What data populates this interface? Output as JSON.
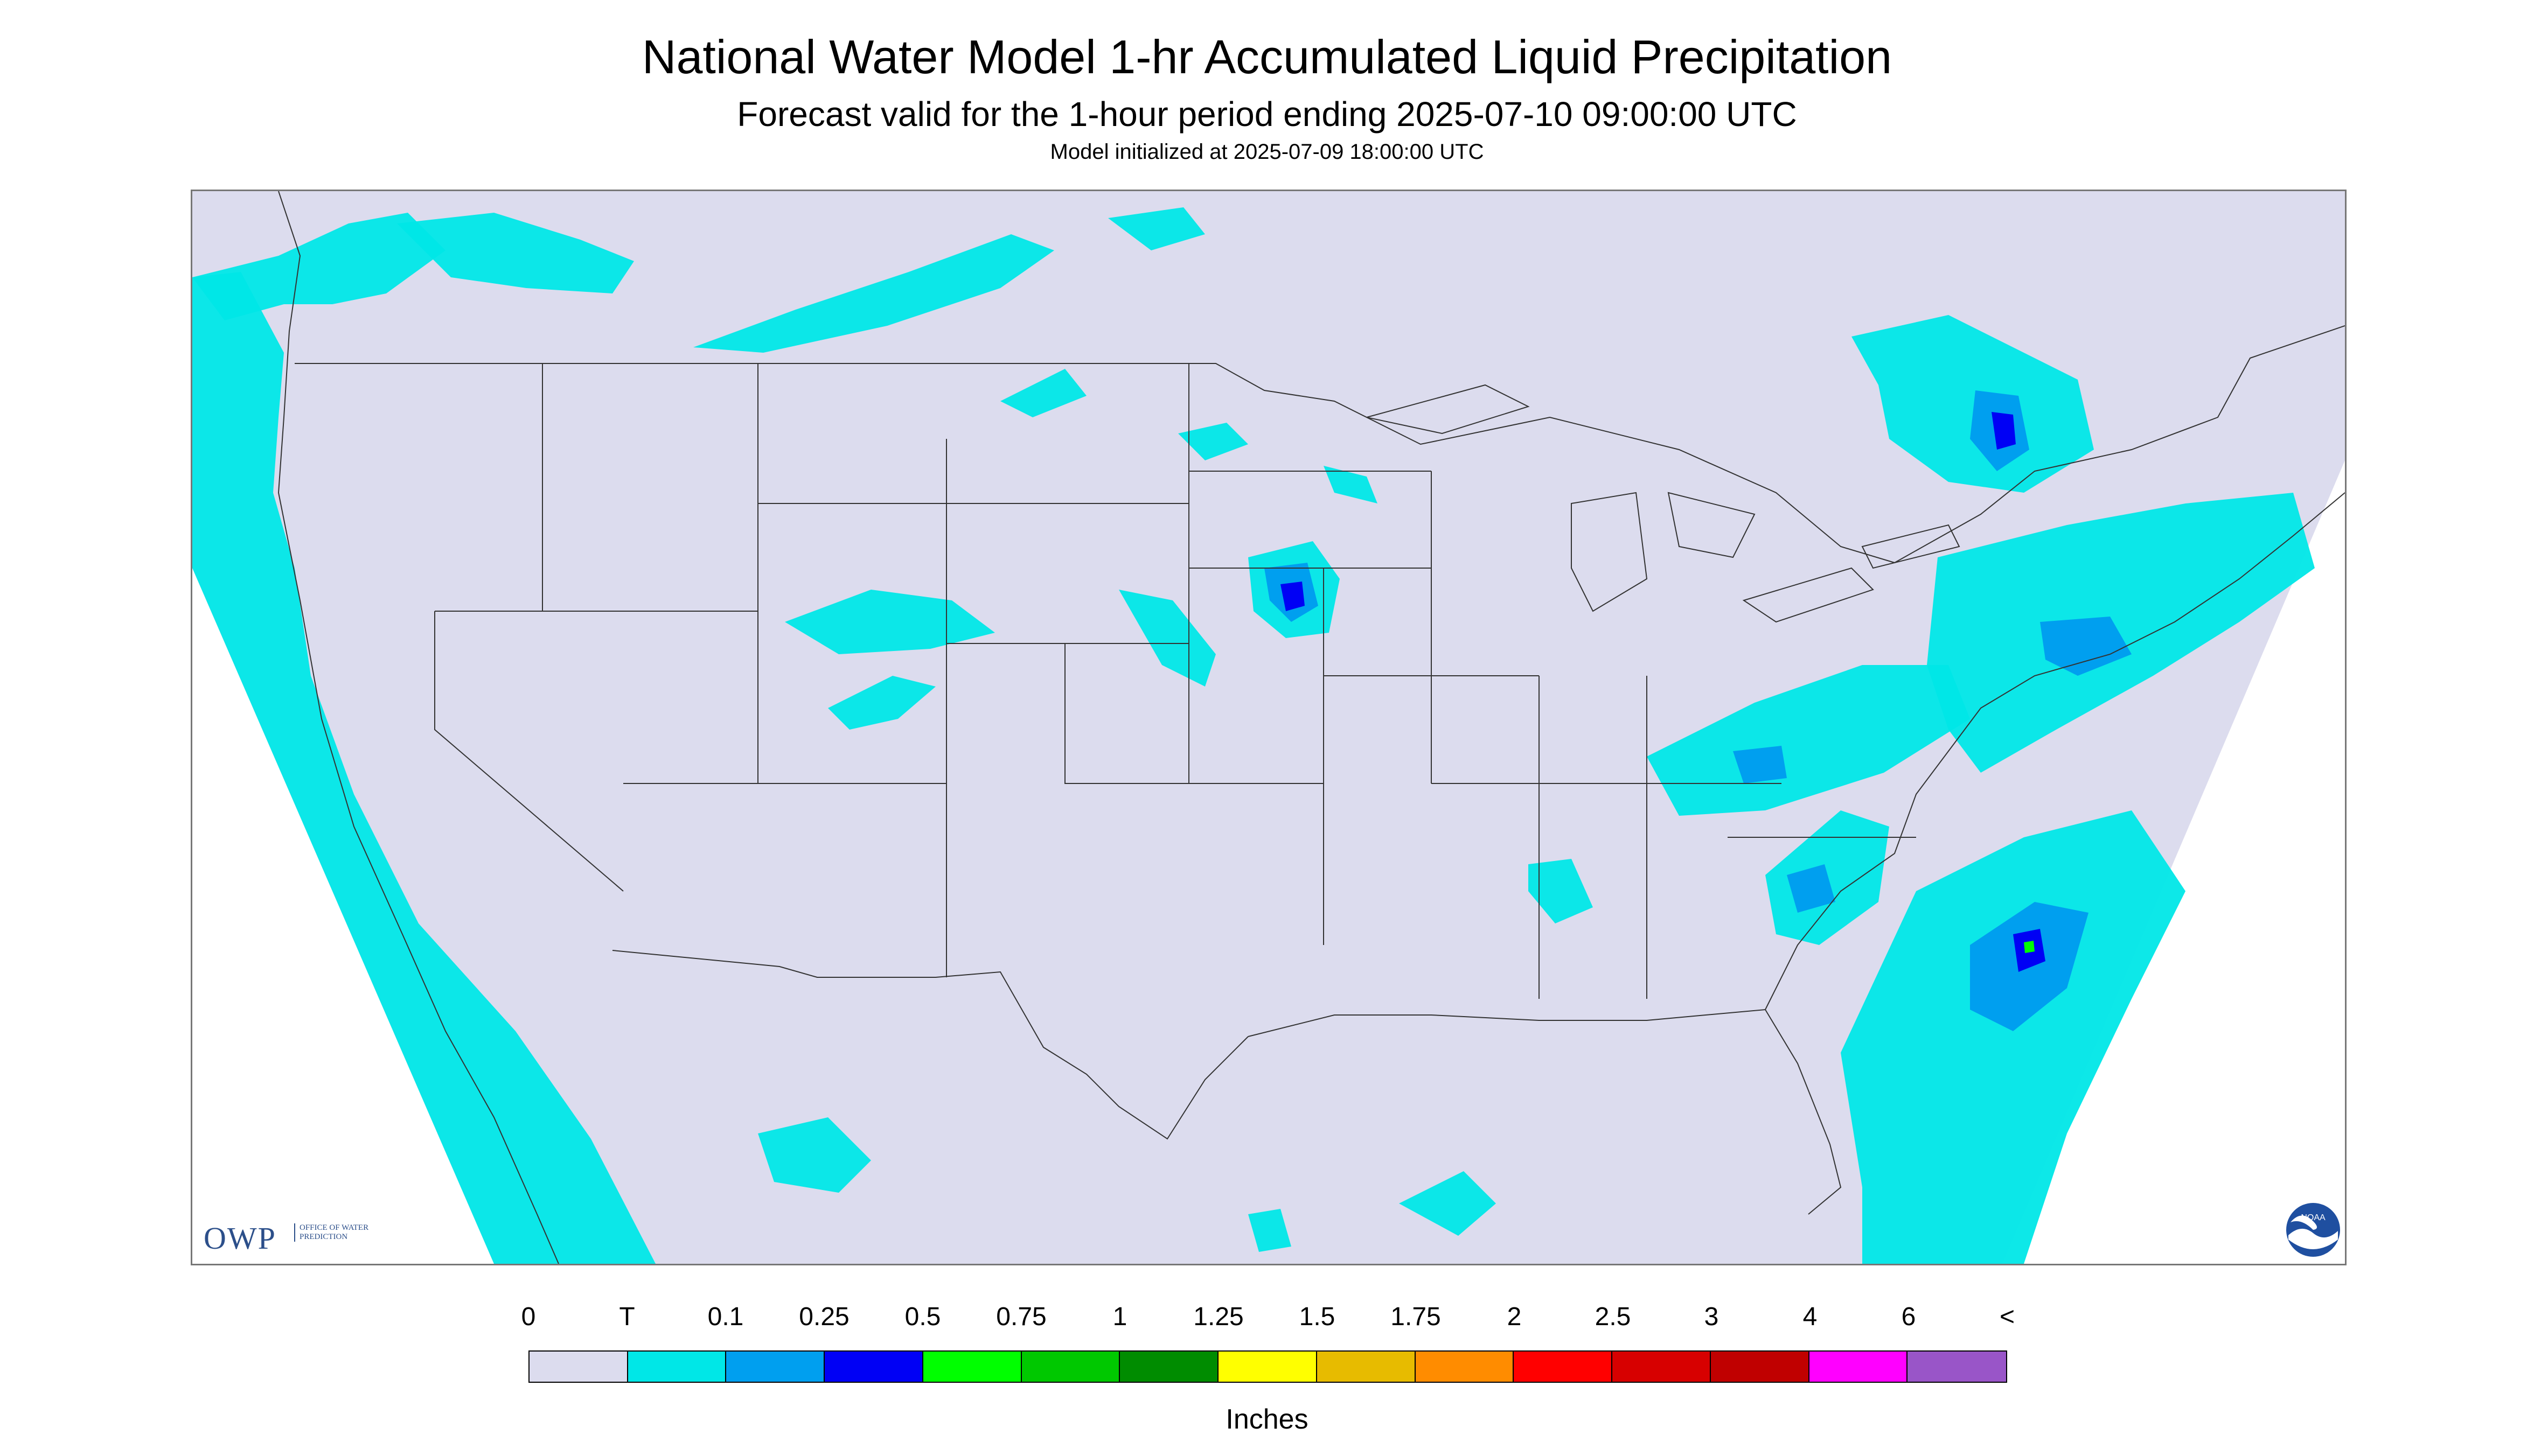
{
  "header": {
    "title": "National Water Model 1-hr Accumulated Liquid Precipitation",
    "subtitle": "Forecast valid for the 1-hour period ending 2025-07-10 09:00:00 UTC",
    "init": "Model initialized at 2025-07-09 18:00:00 UTC"
  },
  "map": {
    "background_color": "#dcdcee",
    "outside_color": "#ffffff",
    "boundary_color": "#333333",
    "precip_colors": {
      "trace": "#00e7e7",
      "p01": "#009fef",
      "p025": "#0000f5",
      "p05": "#00ff00"
    }
  },
  "logos": {
    "owp_text": "OWP",
    "owp_sub": "Office of Water Prediction",
    "noaa_text": "NOAA"
  },
  "legend": {
    "labels": [
      "0",
      "T",
      "0.1",
      "0.25",
      "0.5",
      "0.75",
      "1",
      "1.25",
      "1.5",
      "1.75",
      "2",
      "2.5",
      "3",
      "4",
      "6",
      "<"
    ],
    "colors": [
      "#dcdcee",
      "#00e7e7",
      "#009fef",
      "#0000f5",
      "#00ff00",
      "#00c800",
      "#008c00",
      "#ffff00",
      "#e7bb00",
      "#ff8c00",
      "#ff0000",
      "#d70000",
      "#c00000",
      "#ff00ff",
      "#9955c8"
    ],
    "unit": "Inches"
  }
}
